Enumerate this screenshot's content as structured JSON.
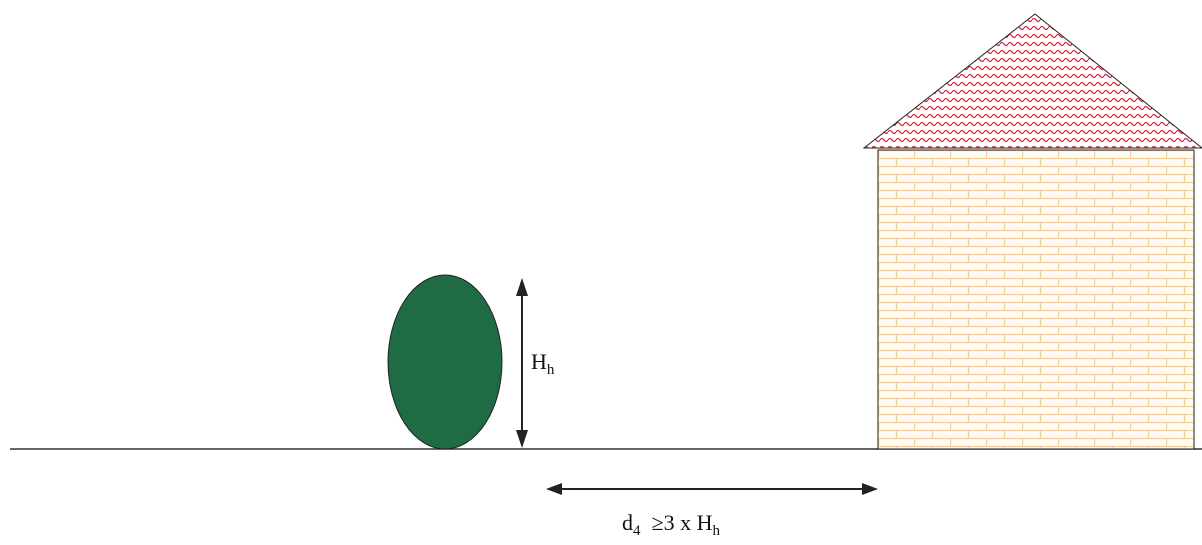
{
  "diagram": {
    "hedge_label": {
      "main": "H",
      "sub": "h"
    },
    "distance_label": {
      "d_main": "d",
      "d_sub": "4",
      "relation": "≥3 x H",
      "h_sub": "h"
    },
    "colors": {
      "hedge_fill": "#1f6b43",
      "roof_pattern": "#d7283e",
      "brick_lines": "#f0cf9a",
      "wall_fill": "#fffaf2",
      "outline": "#222222",
      "ground": "#333333",
      "arrow": "#222222"
    }
  }
}
